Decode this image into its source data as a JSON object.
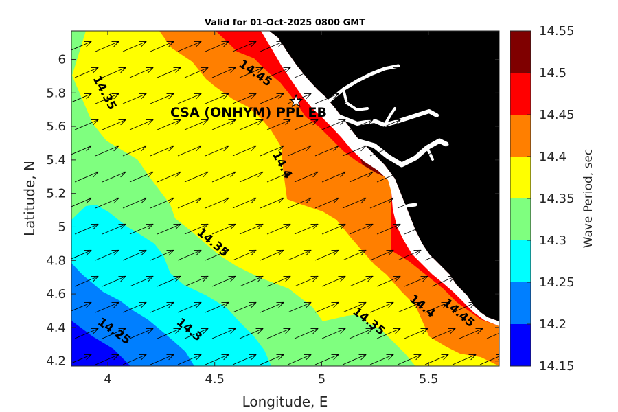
{
  "title": "Valid for 01-Oct-2025 0800 GMT",
  "site_label": "CSA (ONHYM) PPL EB",
  "chart_data": {
    "type": "heatmap",
    "title": "Valid for 01-Oct-2025 0800 GMT",
    "xlabel": "Longitude, E",
    "ylabel": "Latitude, N",
    "xlim": [
      3.83,
      5.83
    ],
    "ylim": [
      4.17,
      6.17
    ],
    "xticks": [
      "4",
      "4.5",
      "5",
      "5.5"
    ],
    "yticks": [
      "4.2",
      "4.4",
      "4.6",
      "4.8",
      "5",
      "5.2",
      "5.4",
      "5.6",
      "5.8",
      "6"
    ],
    "colorbar": {
      "label": "Wave Period, sec",
      "levels": [
        "14.15",
        "14.2",
        "14.25",
        "14.3",
        "14.35",
        "14.4",
        "14.45",
        "14.5",
        "14.55"
      ],
      "colors": [
        "#0000ff",
        "#007fff",
        "#00ffff",
        "#7fff7f",
        "#ffff00",
        "#ff7f00",
        "#ff0000",
        "#7f0000"
      ]
    },
    "contour_labels": [
      {
        "text": "14.35",
        "x": 3.97,
        "y": 5.79
      },
      {
        "text": "14.45",
        "x": 4.68,
        "y": 5.9
      },
      {
        "text": "14.4",
        "x": 4.8,
        "y": 5.36
      },
      {
        "text": "14.35",
        "x": 4.48,
        "y": 4.89
      },
      {
        "text": "14.25",
        "x": 4.02,
        "y": 4.36
      },
      {
        "text": "14.3",
        "x": 4.37,
        "y": 4.37
      },
      {
        "text": "14.35",
        "x": 5.21,
        "y": 4.42
      },
      {
        "text": "14.4",
        "x": 5.46,
        "y": 4.51
      },
      {
        "text": "14.45",
        "x": 5.63,
        "y": 4.47
      }
    ],
    "site": {
      "name": "CSA (ONHYM) PPL EB",
      "lon": 4.88,
      "lat": 5.75
    },
    "vectors": {
      "direction": "toward north-east",
      "dx": 0.11,
      "dy": 0.06
    },
    "land_color": "#000000"
  }
}
